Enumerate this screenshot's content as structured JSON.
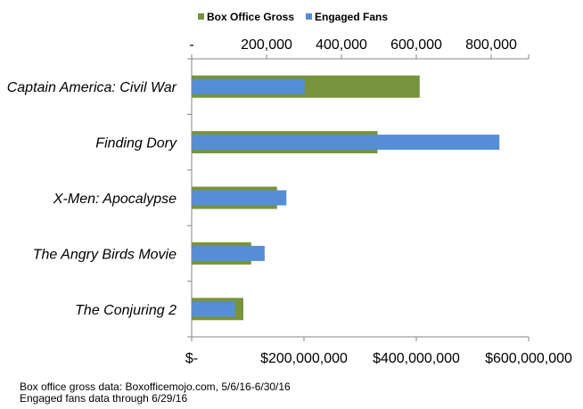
{
  "chart_data": {
    "type": "bar",
    "orientation": "horizontal",
    "categories": [
      "Captain America: Civil War",
      "Finding Dory",
      "X-Men: Apocalypse",
      "The Angry Birds Movie",
      "The Conjuring 2"
    ],
    "series": [
      {
        "name": "Box Office Gross",
        "color": "#77933c",
        "axis": "bottom",
        "values": [
          406000000,
          331000000,
          152000000,
          106000000,
          92000000
        ]
      },
      {
        "name": "Engaged Fans",
        "color": "#558ed5",
        "axis": "top",
        "values": [
          302000,
          822000,
          253000,
          195000,
          116000
        ]
      }
    ],
    "bottom_axis": {
      "range": [
        0,
        600000000
      ],
      "ticks": [
        0,
        200000000,
        400000000,
        600000000
      ],
      "tick_labels": [
        "$-",
        "$200,000,000",
        "$400,000,000",
        "$600,000,000"
      ]
    },
    "top_axis": {
      "range": [
        0,
        900000
      ],
      "ticks": [
        0,
        200000,
        400000,
        600000,
        800000
      ],
      "tick_labels": [
        "-",
        "200,000",
        "400,000",
        "600,000",
        "800,000"
      ]
    },
    "legend_position": "top",
    "grid": false
  },
  "notes": {
    "line1": "Box office gross data: Boxofficemojo.com, 5/6/16-6/30/16",
    "line2": "Engaged fans data through 6/29/16"
  }
}
